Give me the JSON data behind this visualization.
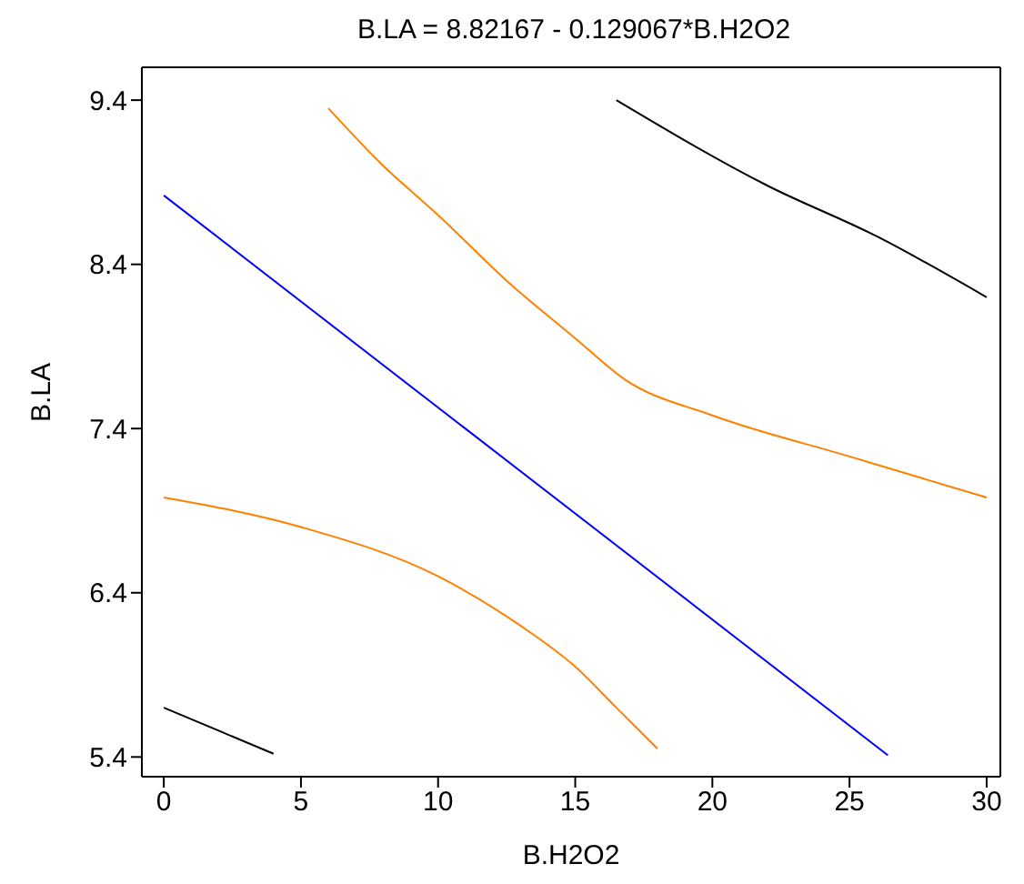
{
  "chart_data": {
    "type": "line",
    "title": "B.LA = 8.82167 - 0.129067*B.H2O2",
    "xlabel": "B.H2O2",
    "ylabel": "B.LA",
    "xlim": [
      -0.8,
      30.5
    ],
    "xticks": [
      0,
      5,
      10,
      15,
      20,
      25,
      30
    ],
    "ylim": [
      5.28,
      9.6
    ],
    "yticks": [
      5.4,
      6.4,
      7.4,
      8.4,
      9.4
    ],
    "grid": false,
    "marker": "none",
    "line_style": "solid",
    "series": [
      {
        "color": "#0000ff",
        "x": [
          0,
          26.4
        ],
        "values": [
          8.82,
          5.41
        ]
      },
      {
        "color": "#ff8000",
        "x": [
          6,
          8,
          10,
          12.5,
          15,
          16.8,
          20,
          25,
          30
        ],
        "values": [
          9.35,
          9.0,
          8.7,
          8.3,
          7.95,
          7.7,
          7.48,
          7.23,
          6.98
        ]
      },
      {
        "color": "#ff8000",
        "x": [
          0,
          5,
          10,
          13,
          15,
          16.5,
          18
        ],
        "values": [
          6.98,
          6.8,
          6.5,
          6.2,
          5.95,
          5.7,
          5.45
        ]
      },
      {
        "color": "#000000",
        "x": [
          16.5,
          22,
          26,
          30
        ],
        "values": [
          9.4,
          8.88,
          8.57,
          8.2
        ]
      },
      {
        "color": "#000000",
        "x": [
          0,
          2,
          4
        ],
        "values": [
          5.7,
          5.56,
          5.42
        ]
      }
    ]
  }
}
